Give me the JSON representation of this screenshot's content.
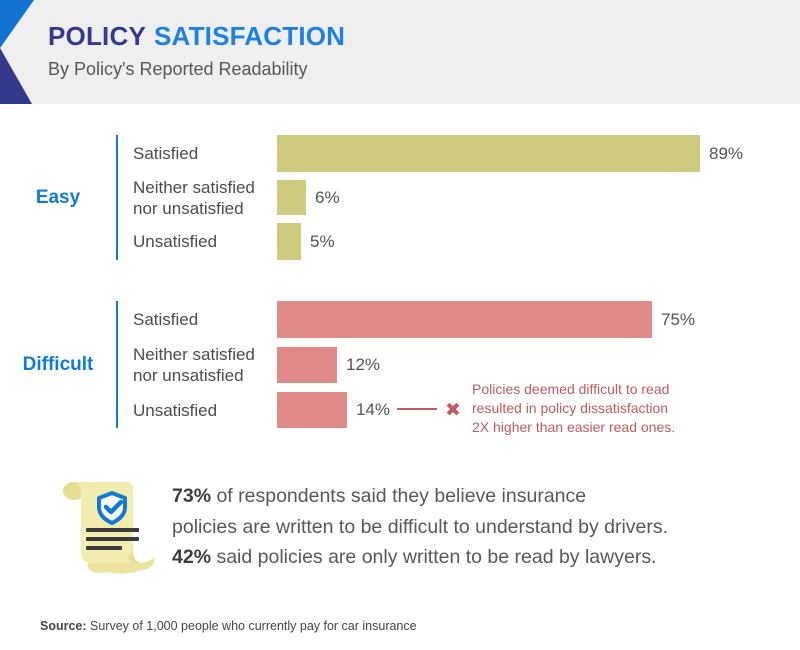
{
  "header": {
    "title_primary": "POLICY",
    "title_secondary": "SATISFACTION",
    "subtitle": "By Policy's Reported Readability"
  },
  "colors": {
    "accent_blue": "#0f7ad8",
    "title_navy": "#363a8e",
    "title_blue": "#1d80e4",
    "header_bg": "#efeff0",
    "easy_bar": "#cfcb7e",
    "difficult_bar": "#e08b8a",
    "annotation_red": "#c05b5e",
    "text_grey": "#4c4c4e"
  },
  "chart_data": {
    "type": "bar",
    "orientation": "horizontal",
    "title": "POLICY SATISFACTION",
    "subtitle": "By Policy's Reported Readability",
    "unit": "percent",
    "categories": [
      "Satisfied",
      "Neither satisfied nor unsatisfied",
      "Unsatisfied"
    ],
    "series": [
      {
        "name": "Easy",
        "values": [
          89,
          6,
          5
        ],
        "color": "#cfcb7e"
      },
      {
        "name": "Difficult",
        "values": [
          75,
          12,
          14
        ],
        "color": "#e08b8a"
      }
    ],
    "xlim": [
      0,
      100
    ],
    "grid": false,
    "legend": "none",
    "value_labels": {
      "Easy": [
        "89%",
        "6%",
        "5%"
      ],
      "Difficult": [
        "75%",
        "12%",
        "14%"
      ]
    },
    "annotation": "Policies deemed difficult to read resulted in policy dissatisfaction 2X higher than easier read ones.",
    "source": "Survey of 1,000 people who currently pay for car insurance"
  },
  "groups": {
    "easy": {
      "label": "Easy",
      "rows": [
        {
          "label1": "Satisfied",
          "label2": "",
          "pct": "89%"
        },
        {
          "label1": "Neither satisfied",
          "label2": "nor unsatisfied",
          "pct": "6%"
        },
        {
          "label1": "Unsatisfied",
          "label2": "",
          "pct": "5%"
        }
      ]
    },
    "difficult": {
      "label": "Difficult",
      "rows": [
        {
          "label1": "Satisfied",
          "label2": "",
          "pct": "75%"
        },
        {
          "label1": "Neither satisfied",
          "label2": "nor unsatisfied",
          "pct": "12%"
        },
        {
          "label1": "Unsatisfied",
          "label2": "",
          "pct": "14%"
        }
      ]
    }
  },
  "annotation": {
    "x_icon": "✖",
    "lines": [
      "Policies deemed difficult to read",
      "resulted in policy dissatisfaction",
      "2X higher than easier read ones."
    ]
  },
  "callout": {
    "stat1_bold": "73%",
    "stat1_text": " of respondents said they believe insurance",
    "line2": "policies are written to be difficult to understand by drivers.",
    "stat2_bold": "42%",
    "stat2_text": " said policies are only written to be read by lawyers."
  },
  "source": {
    "label": "Source:",
    "text": " Survey of 1,000 people who currently pay for car insurance"
  }
}
